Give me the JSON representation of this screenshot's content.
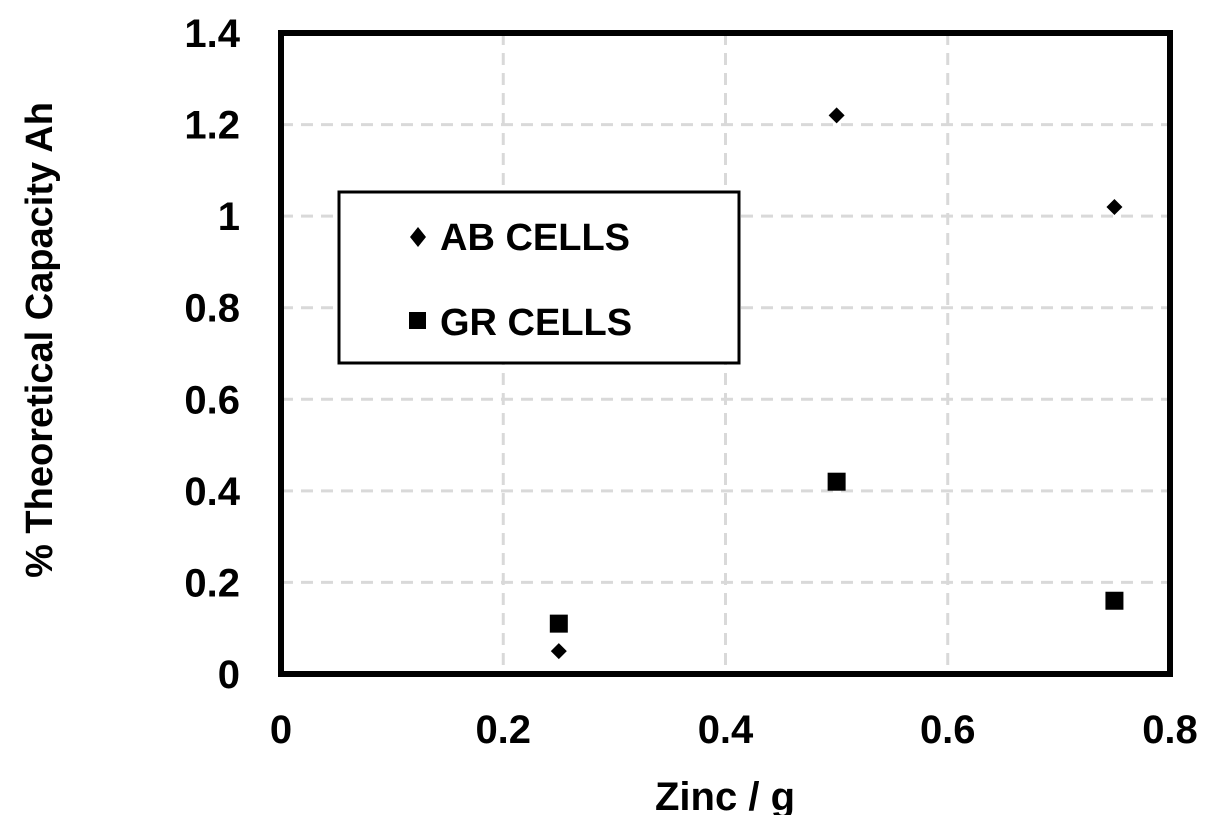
{
  "chart_data": {
    "type": "scatter",
    "title": "",
    "xlabel": "Zinc / g",
    "ylabel": "% Theoretical Capacity Ah",
    "xlim": [
      0,
      0.8
    ],
    "ylim": [
      0,
      1.4
    ],
    "x_ticks": [
      "0",
      "0.2",
      "0.4",
      "0.6",
      "0.8"
    ],
    "y_ticks": [
      "0",
      "0.2",
      "0.4",
      "0.6",
      "0.8",
      "1",
      "1.2",
      "1.4"
    ],
    "grid": true,
    "legend_position": "upper-left",
    "series": [
      {
        "name": "AB CELLS",
        "marker": "diamond",
        "color": "#000000",
        "x": [
          0.25,
          0.5,
          0.75
        ],
        "y": [
          0.05,
          1.22,
          1.02
        ]
      },
      {
        "name": "GR CELLS",
        "marker": "square",
        "color": "#000000",
        "x": [
          0.25,
          0.5,
          0.75
        ],
        "y": [
          0.11,
          0.42,
          0.16
        ]
      }
    ]
  }
}
